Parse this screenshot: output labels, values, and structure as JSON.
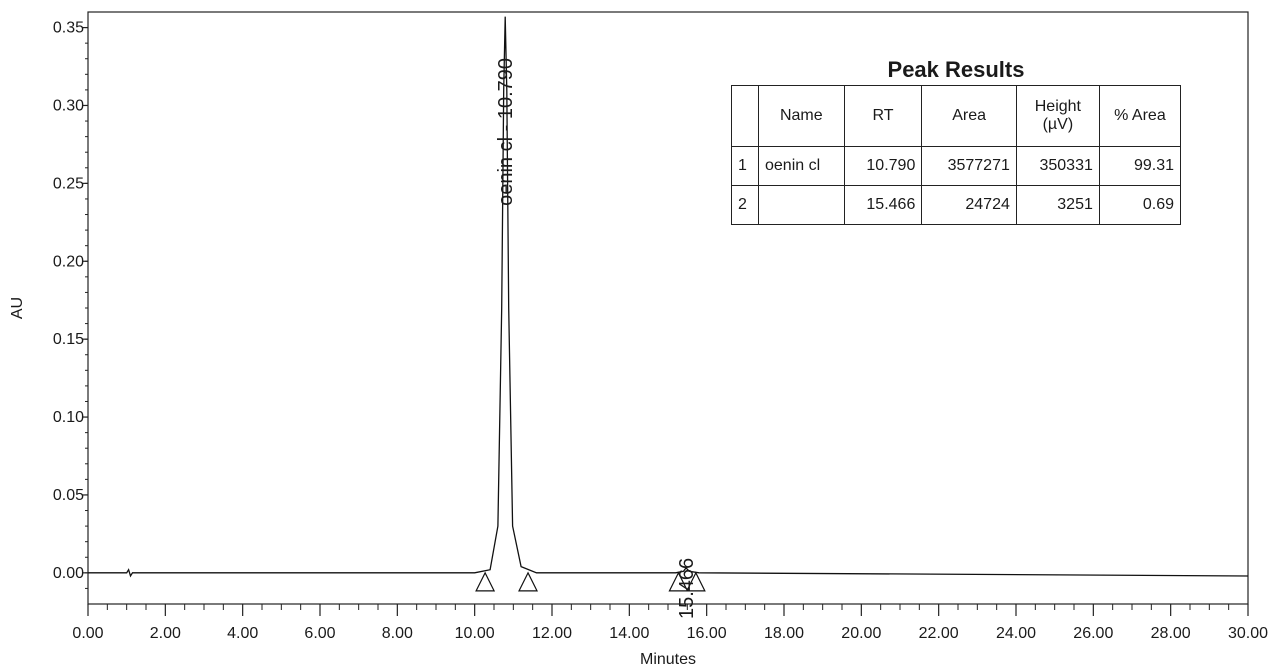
{
  "chart_data": {
    "type": "line",
    "xlabel": "Minutes",
    "ylabel": "AU",
    "xlim": [
      0,
      30
    ],
    "ylim": [
      -0.02,
      0.36
    ],
    "x_ticks": [
      "0.00",
      "2.00",
      "4.00",
      "6.00",
      "8.00",
      "10.00",
      "12.00",
      "14.00",
      "16.00",
      "18.00",
      "20.00",
      "22.00",
      "24.00",
      "26.00",
      "28.00",
      "30.00"
    ],
    "y_ticks": [
      "0.00",
      "0.05",
      "0.10",
      "0.15",
      "0.20",
      "0.25",
      "0.30",
      "0.35"
    ],
    "grid": false,
    "series": [
      {
        "x": [
          0,
          1.0,
          1.05,
          1.1,
          1.15,
          10.0,
          10.4,
          10.6,
          10.7,
          10.75,
          10.79,
          10.83,
          10.88,
          10.98,
          11.2,
          11.6,
          15.2,
          15.4,
          15.466,
          15.55,
          15.8,
          30.0
        ],
        "y": [
          0,
          0,
          0.002,
          -0.002,
          0,
          0,
          0.002,
          0.03,
          0.17,
          0.31,
          0.357,
          0.31,
          0.17,
          0.03,
          0.004,
          0,
          0,
          0.001,
          0.0032,
          0.001,
          0,
          -0.002
        ]
      }
    ],
    "peak_labels": [
      {
        "text": "oenin cl - 10.790",
        "x": 10.79,
        "y": 0.357
      },
      {
        "text": "15.466",
        "x": 15.466,
        "y": 0.0032
      }
    ],
    "integration_markers": [
      10.27,
      11.38,
      15.27,
      15.72
    ]
  },
  "peak_results": {
    "title": "Peak Results",
    "columns": [
      "",
      "Name",
      "RT",
      "Area",
      "Height (µV)",
      "% Area"
    ],
    "rows": [
      {
        "index": "1",
        "name": "oenin cl",
        "rt": "10.790",
        "area": "3577271",
        "height": "350331",
        "pct_area": "99.31"
      },
      {
        "index": "2",
        "name": "",
        "rt": "15.466",
        "area": "24724",
        "height": "3251",
        "pct_area": "0.69"
      }
    ]
  }
}
